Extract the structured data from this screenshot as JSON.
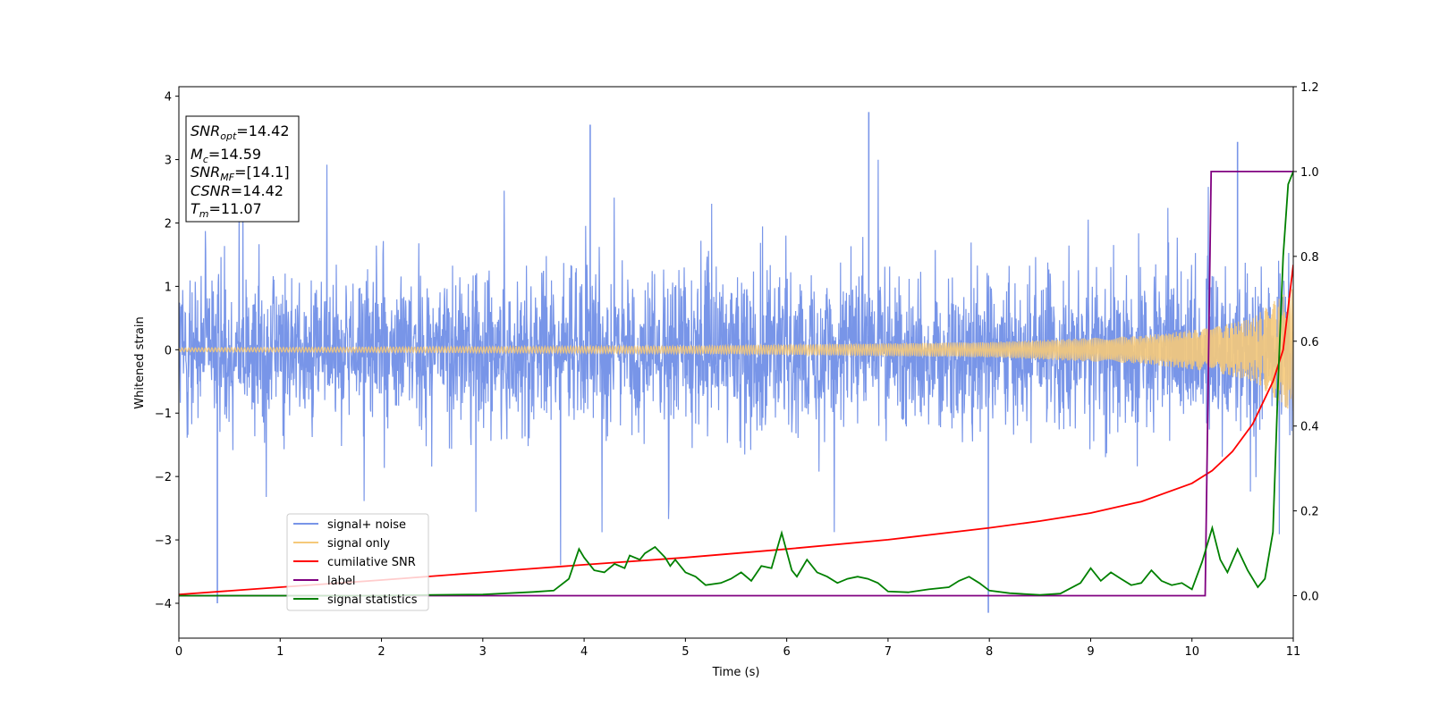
{
  "chart_data": {
    "type": "line",
    "xlabel": "Time (s)",
    "ylabel": "Whitened strain",
    "xlim": [
      0,
      11
    ],
    "ylim_left": [
      -4.55,
      4.15
    ],
    "ylim_right": [
      -0.1,
      1.2
    ],
    "x_ticks": [
      "0",
      "1",
      "2",
      "3",
      "4",
      "5",
      "6",
      "7",
      "8",
      "9",
      "10",
      "11"
    ],
    "y_left_ticks": [
      "4",
      "3",
      "2",
      "1",
      "0",
      "−1",
      "−2",
      "−3",
      "−4"
    ],
    "y_right_ticks": [
      "1.2",
      "1.0",
      "0.8",
      "0.6",
      "0.4",
      "0.2",
      "0.0"
    ],
    "annotation": {
      "lines": [
        {
          "sym": "SNR",
          "sub": "opt",
          "value": "=14.42"
        },
        {
          "sym": "M",
          "sub": "c",
          "value": "=14.59"
        },
        {
          "sym": "SNR",
          "sub": "MF",
          "value": "=[14.1]"
        },
        {
          "sym": "CSNR",
          "sub": "",
          "value": "=14.42"
        },
        {
          "sym": "T",
          "sub": "m",
          "value": "=11.07"
        }
      ]
    },
    "legend": {
      "location": "lower-left",
      "entries": [
        {
          "label": "signal+ noise",
          "color": "#7895e8"
        },
        {
          "label": "signal only",
          "color": "#f5c97a"
        },
        {
          "label": "cumilative SNR",
          "color": "#ff0000"
        },
        {
          "label": "label",
          "color": "#800080"
        },
        {
          "label": "signal statistics",
          "color": "#008000"
        }
      ]
    },
    "series": [
      {
        "name": "signal+ noise",
        "axis": "left",
        "color": "#7895e8",
        "kind": "noise",
        "amplitude_envelope": 2.7,
        "x_range": [
          0,
          11
        ],
        "notable_spikes": [
          [
            0.38,
            -4.0
          ],
          [
            4.06,
            3.55
          ],
          [
            6.81,
            3.75
          ],
          [
            7.99,
            -4.15
          ],
          [
            10.45,
            3.28
          ]
        ]
      },
      {
        "name": "signal only",
        "axis": "left",
        "color": "#f5c97a",
        "kind": "chirp",
        "envelope": [
          [
            0,
            0.03
          ],
          [
            5,
            0.06
          ],
          [
            8,
            0.12
          ],
          [
            9.5,
            0.22
          ],
          [
            10.2,
            0.35
          ],
          [
            10.6,
            0.5
          ],
          [
            11,
            1.0
          ]
        ]
      },
      {
        "name": "cumilative SNR",
        "axis": "right",
        "color": "#ff0000",
        "x": [
          0,
          1,
          2,
          3,
          4,
          5,
          6,
          7,
          8,
          8.5,
          9,
          9.5,
          10,
          10.2,
          10.4,
          10.6,
          10.8,
          10.9,
          11
        ],
        "y": [
          0.003,
          0.02,
          0.037,
          0.055,
          0.073,
          0.09,
          0.11,
          0.132,
          0.16,
          0.176,
          0.195,
          0.222,
          0.265,
          0.295,
          0.34,
          0.405,
          0.505,
          0.58,
          0.78
        ]
      },
      {
        "name": "label",
        "axis": "right",
        "color": "#800080",
        "x": [
          0,
          10.13,
          10.19,
          11
        ],
        "y": [
          0.0,
          0.0,
          1.0,
          1.0
        ]
      },
      {
        "name": "signal statistics",
        "axis": "right",
        "color": "#008000",
        "x": [
          0,
          1,
          2,
          2.5,
          3,
          3.5,
          3.7,
          3.85,
          3.95,
          4.0,
          4.1,
          4.2,
          4.3,
          4.4,
          4.45,
          4.55,
          4.6,
          4.7,
          4.8,
          4.85,
          4.9,
          5.0,
          5.1,
          5.2,
          5.35,
          5.45,
          5.55,
          5.65,
          5.75,
          5.85,
          5.95,
          6.05,
          6.1,
          6.2,
          6.3,
          6.4,
          6.5,
          6.6,
          6.7,
          6.8,
          6.9,
          7.0,
          7.2,
          7.4,
          7.6,
          7.7,
          7.8,
          7.9,
          8.0,
          8.2,
          8.5,
          8.7,
          8.9,
          9.0,
          9.1,
          9.2,
          9.3,
          9.4,
          9.5,
          9.6,
          9.7,
          9.8,
          9.9,
          10.0,
          10.1,
          10.2,
          10.28,
          10.35,
          10.45,
          10.55,
          10.65,
          10.72,
          10.8,
          10.85,
          10.9,
          10.95,
          11.0
        ],
        "y": [
          0.0,
          0.0,
          0.0,
          0.002,
          0.003,
          0.009,
          0.012,
          0.04,
          0.11,
          0.09,
          0.06,
          0.055,
          0.075,
          0.065,
          0.095,
          0.085,
          0.1,
          0.115,
          0.09,
          0.07,
          0.085,
          0.055,
          0.045,
          0.025,
          0.03,
          0.04,
          0.055,
          0.035,
          0.07,
          0.065,
          0.148,
          0.06,
          0.045,
          0.085,
          0.055,
          0.045,
          0.03,
          0.04,
          0.045,
          0.04,
          0.03,
          0.01,
          0.008,
          0.015,
          0.02,
          0.035,
          0.045,
          0.03,
          0.012,
          0.006,
          0.002,
          0.005,
          0.03,
          0.065,
          0.035,
          0.055,
          0.04,
          0.025,
          0.03,
          0.06,
          0.035,
          0.025,
          0.03,
          0.015,
          0.08,
          0.16,
          0.085,
          0.055,
          0.11,
          0.06,
          0.02,
          0.04,
          0.15,
          0.5,
          0.8,
          0.97,
          1.0
        ]
      }
    ]
  }
}
